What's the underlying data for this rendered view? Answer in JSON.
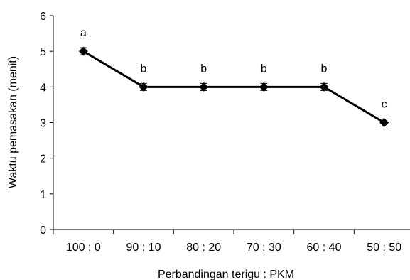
{
  "chart_data": {
    "type": "line",
    "title": "",
    "xlabel": "Perbandingan terigu : PKM",
    "ylabel": "Waktu pemasakan (menit)",
    "categories": [
      "100 : 0",
      "90 : 10",
      "80 : 20",
      "70 : 30",
      "60 : 40",
      "50 : 50"
    ],
    "series": [
      {
        "values": [
          5,
          4,
          4,
          4,
          4,
          3
        ],
        "error": [
          0.1,
          0.1,
          0.1,
          0.1,
          0.1,
          0.1
        ],
        "labels": [
          "a",
          "b",
          "b",
          "b",
          "b",
          "c"
        ],
        "marker": "diamond",
        "color": "#000000"
      }
    ],
    "ylim": [
      0,
      6
    ],
    "yticks": [
      "0",
      "1",
      "2",
      "3",
      "4",
      "5",
      "6"
    ],
    "grid": false,
    "legend": "none"
  }
}
